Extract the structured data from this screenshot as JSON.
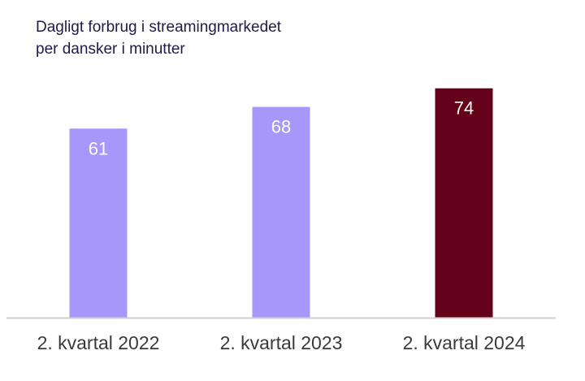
{
  "chart_data": {
    "type": "bar",
    "title_lines": [
      "Dagligt forbrug i streamingmarkedet",
      "per dansker i minutter"
    ],
    "categories": [
      "2. kvartal 2022",
      "2. kvartal 2023",
      "2. kvartal 2024"
    ],
    "values": [
      61,
      68,
      74
    ],
    "value_labels": [
      "61",
      "68",
      "74"
    ],
    "bar_colors": [
      "#a797fb",
      "#a797fb",
      "#650019"
    ],
    "axis_color": "#cfcfcf",
    "ylim": [
      0,
      81
    ],
    "xlabel": "",
    "ylabel": "",
    "grid": false,
    "legend": "none"
  }
}
